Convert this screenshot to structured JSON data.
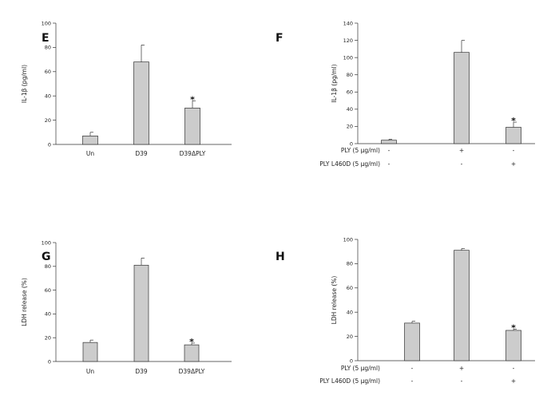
{
  "chart_data": [
    {
      "id": "E",
      "panel_label": "E",
      "type": "bar",
      "ylabel": "IL-1β (pg/ml)",
      "ylim": [
        0,
        100
      ],
      "yticks": [
        "0",
        "20",
        "40",
        "60",
        "80",
        "100"
      ],
      "categories": [
        "Un",
        "D39",
        "D39ΔPLY"
      ],
      "values": [
        7,
        68,
        30
      ],
      "errors": [
        3,
        14,
        6
      ],
      "significant": [
        false,
        false,
        true
      ],
      "sig_marker": "*"
    },
    {
      "id": "F",
      "panel_label": "F",
      "type": "bar",
      "ylabel": "IL-1β (pg/ml)",
      "ylim": [
        0,
        140
      ],
      "yticks": [
        "0",
        "20",
        "40",
        "60",
        "80",
        "100",
        "120",
        "140"
      ],
      "values": [
        4,
        106,
        19
      ],
      "errors": [
        1,
        14,
        6
      ],
      "significant": [
        false,
        false,
        true
      ],
      "sig_marker": "*",
      "conditions": [
        {
          "label": "PLY (5 μg/ml)",
          "signs": [
            "-",
            "+",
            "-"
          ]
        },
        {
          "label": "PLY L460D (5 μg/ml)",
          "signs": [
            "-",
            "-",
            "+"
          ]
        }
      ]
    },
    {
      "id": "G",
      "panel_label": "G",
      "type": "bar",
      "ylabel": "LDH release (%)",
      "ylim": [
        0,
        100
      ],
      "yticks": [
        "0",
        "20",
        "40",
        "60",
        "80",
        "100"
      ],
      "categories": [
        "Un",
        "D39",
        "D39ΔPLY"
      ],
      "values": [
        16,
        81,
        14
      ],
      "errors": [
        2,
        6,
        1.5
      ],
      "significant": [
        false,
        false,
        true
      ],
      "sig_marker": "*"
    },
    {
      "id": "H",
      "panel_label": "H",
      "type": "bar",
      "ylabel": "LDH release (%)",
      "ylim": [
        0,
        100
      ],
      "yticks": [
        "0",
        "20",
        "40",
        "60",
        "80",
        "100"
      ],
      "values": [
        31,
        91,
        25
      ],
      "errors": [
        1.5,
        1.5,
        1
      ],
      "significant": [
        false,
        false,
        true
      ],
      "sig_marker": "*",
      "conditions": [
        {
          "label": "PLY (5 μg/ml)",
          "signs": [
            "-",
            "+",
            "-"
          ]
        },
        {
          "label": "PLY L460D (5 μg/ml)",
          "signs": [
            "-",
            "-",
            "+"
          ]
        }
      ]
    }
  ]
}
